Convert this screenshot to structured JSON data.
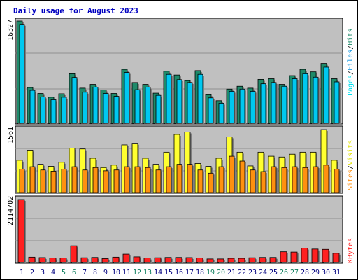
{
  "title": "Daily usage for August 2023",
  "colors": {
    "hits": "#1e8a6a",
    "files": "#00c8f0",
    "pages": "#00e0f0",
    "visits": "#ffff30",
    "sites": "#ff9010",
    "kbytes": "#ff2020",
    "weekend": "#108060",
    "weekday": "#000080",
    "title": "#0000c0",
    "panel": "#c0c0c0"
  },
  "legend": {
    "top": {
      "pages": "Pages",
      "files": "Files",
      "hits": "Hits",
      "sep": "/"
    },
    "mid": {
      "sites": "Sites",
      "visits": "Visits",
      "sep": "/"
    },
    "bottom": {
      "kbytes": "KBytes"
    }
  },
  "chart_data": [
    {
      "type": "bar",
      "title": "Daily usage for August 2023",
      "categories": [
        "1",
        "2",
        "3",
        "4",
        "5",
        "6",
        "7",
        "8",
        "9",
        "10",
        "11",
        "12",
        "13",
        "14",
        "15",
        "16",
        "17",
        "18",
        "19",
        "20",
        "21",
        "22",
        "23",
        "24",
        "25",
        "26",
        "27",
        "28",
        "29",
        "30",
        "31"
      ],
      "weekend_days": [
        5,
        6,
        12,
        13,
        19,
        20,
        26,
        27
      ],
      "ymax_label": "16327",
      "ylim": [
        0,
        16327
      ],
      "series": [
        {
          "name": "Hits",
          "values": [
            16327,
            5700,
            4750,
            4150,
            4700,
            7900,
            5600,
            6200,
            5300,
            4750,
            8600,
            6500,
            6200,
            4800,
            8300,
            7700,
            6800,
            8400,
            4550,
            3600,
            5450,
            5900,
            5600,
            7000,
            7100,
            6200,
            7600,
            8600,
            8200,
            9550,
            7100
          ]
        },
        {
          "name": "Files",
          "values": [
            15800,
            5250,
            4200,
            3750,
            4150,
            7300,
            4950,
            5750,
            4750,
            4300,
            8100,
            5350,
            5750,
            4450,
            7800,
            6950,
            6500,
            7800,
            4050,
            3200,
            5100,
            5450,
            5100,
            6300,
            6500,
            5900,
            7100,
            7900,
            7350,
            8950,
            6600
          ]
        },
        {
          "name": "Pages",
          "values": [
            15800,
            5250,
            4200,
            3750,
            4150,
            7300,
            4950,
            5750,
            4750,
            4300,
            8100,
            5350,
            5750,
            4450,
            7800,
            6950,
            6500,
            7800,
            4050,
            3200,
            5100,
            5450,
            5100,
            6300,
            6500,
            5900,
            7100,
            7900,
            7350,
            8950,
            6600
          ]
        }
      ]
    },
    {
      "type": "bar",
      "categories": [
        "1",
        "2",
        "3",
        "4",
        "5",
        "6",
        "7",
        "8",
        "9",
        "10",
        "11",
        "12",
        "13",
        "14",
        "15",
        "16",
        "17",
        "18",
        "19",
        "20",
        "21",
        "22",
        "23",
        "24",
        "25",
        "26",
        "27",
        "28",
        "29",
        "30",
        "31"
      ],
      "ymax_label": "1561",
      "ylim": [
        0,
        1561
      ],
      "series": [
        {
          "name": "Visits",
          "values": [
            800,
            1050,
            700,
            650,
            750,
            1100,
            1080,
            850,
            620,
            680,
            1180,
            1220,
            850,
            700,
            1000,
            1440,
            1500,
            720,
            650,
            850,
            1380,
            1000,
            660,
            1000,
            900,
            880,
            950,
            1000,
            1000,
            1560,
            800
          ]
        },
        {
          "name": "Sites",
          "values": [
            580,
            640,
            560,
            530,
            580,
            640,
            560,
            620,
            540,
            560,
            640,
            640,
            620,
            560,
            640,
            700,
            700,
            560,
            480,
            640,
            900,
            780,
            560,
            520,
            640,
            620,
            640,
            620,
            640,
            680,
            580
          ]
        }
      ]
    },
    {
      "type": "bar",
      "categories": [
        "1",
        "2",
        "3",
        "4",
        "5",
        "6",
        "7",
        "8",
        "9",
        "10",
        "11",
        "12",
        "13",
        "14",
        "15",
        "16",
        "17",
        "18",
        "19",
        "20",
        "21",
        "22",
        "23",
        "24",
        "25",
        "26",
        "27",
        "28",
        "29",
        "30",
        "31"
      ],
      "ymax_label": "2114702",
      "ylim": [
        0,
        2114702
      ],
      "series": [
        {
          "name": "KBytes",
          "values": [
            2114702,
            180000,
            165000,
            150000,
            150000,
            560000,
            160000,
            170000,
            130000,
            180000,
            280000,
            190000,
            150000,
            160000,
            170000,
            170000,
            165000,
            150000,
            120000,
            120000,
            140000,
            140000,
            160000,
            170000,
            170000,
            360000,
            350000,
            480000,
            450000,
            440000,
            310000
          ]
        }
      ]
    }
  ]
}
